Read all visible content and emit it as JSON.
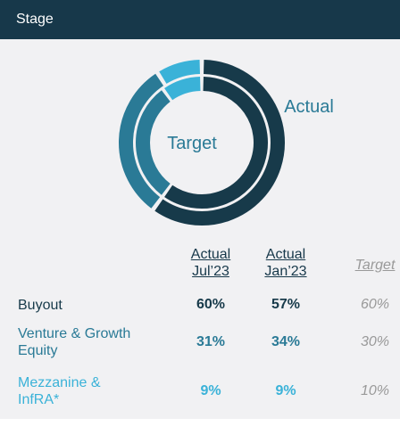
{
  "header": {
    "title": "Stage"
  },
  "chart_data": {
    "type": "donut",
    "ring_labels": [
      "Actual",
      "Target"
    ],
    "categories": [
      "Buyout",
      "Venture & Growth Equity",
      "Mezzanine & InfRA*"
    ],
    "colors": [
      "#173a4a",
      "#2a7a96",
      "#3ab2d8"
    ],
    "series": [
      {
        "name": "Actual Jul’23",
        "values": [
          60,
          31,
          9
        ],
        "value_labels": [
          "60%",
          "31%",
          "9%"
        ]
      },
      {
        "name": "Actual Jan’23",
        "values": [
          57,
          34,
          9
        ],
        "value_labels": [
          "57%",
          "34%",
          "9%"
        ]
      },
      {
        "name": "Target",
        "values": [
          60,
          30,
          10
        ],
        "value_labels": [
          "60%",
          "30%",
          "10%"
        ]
      }
    ]
  }
}
